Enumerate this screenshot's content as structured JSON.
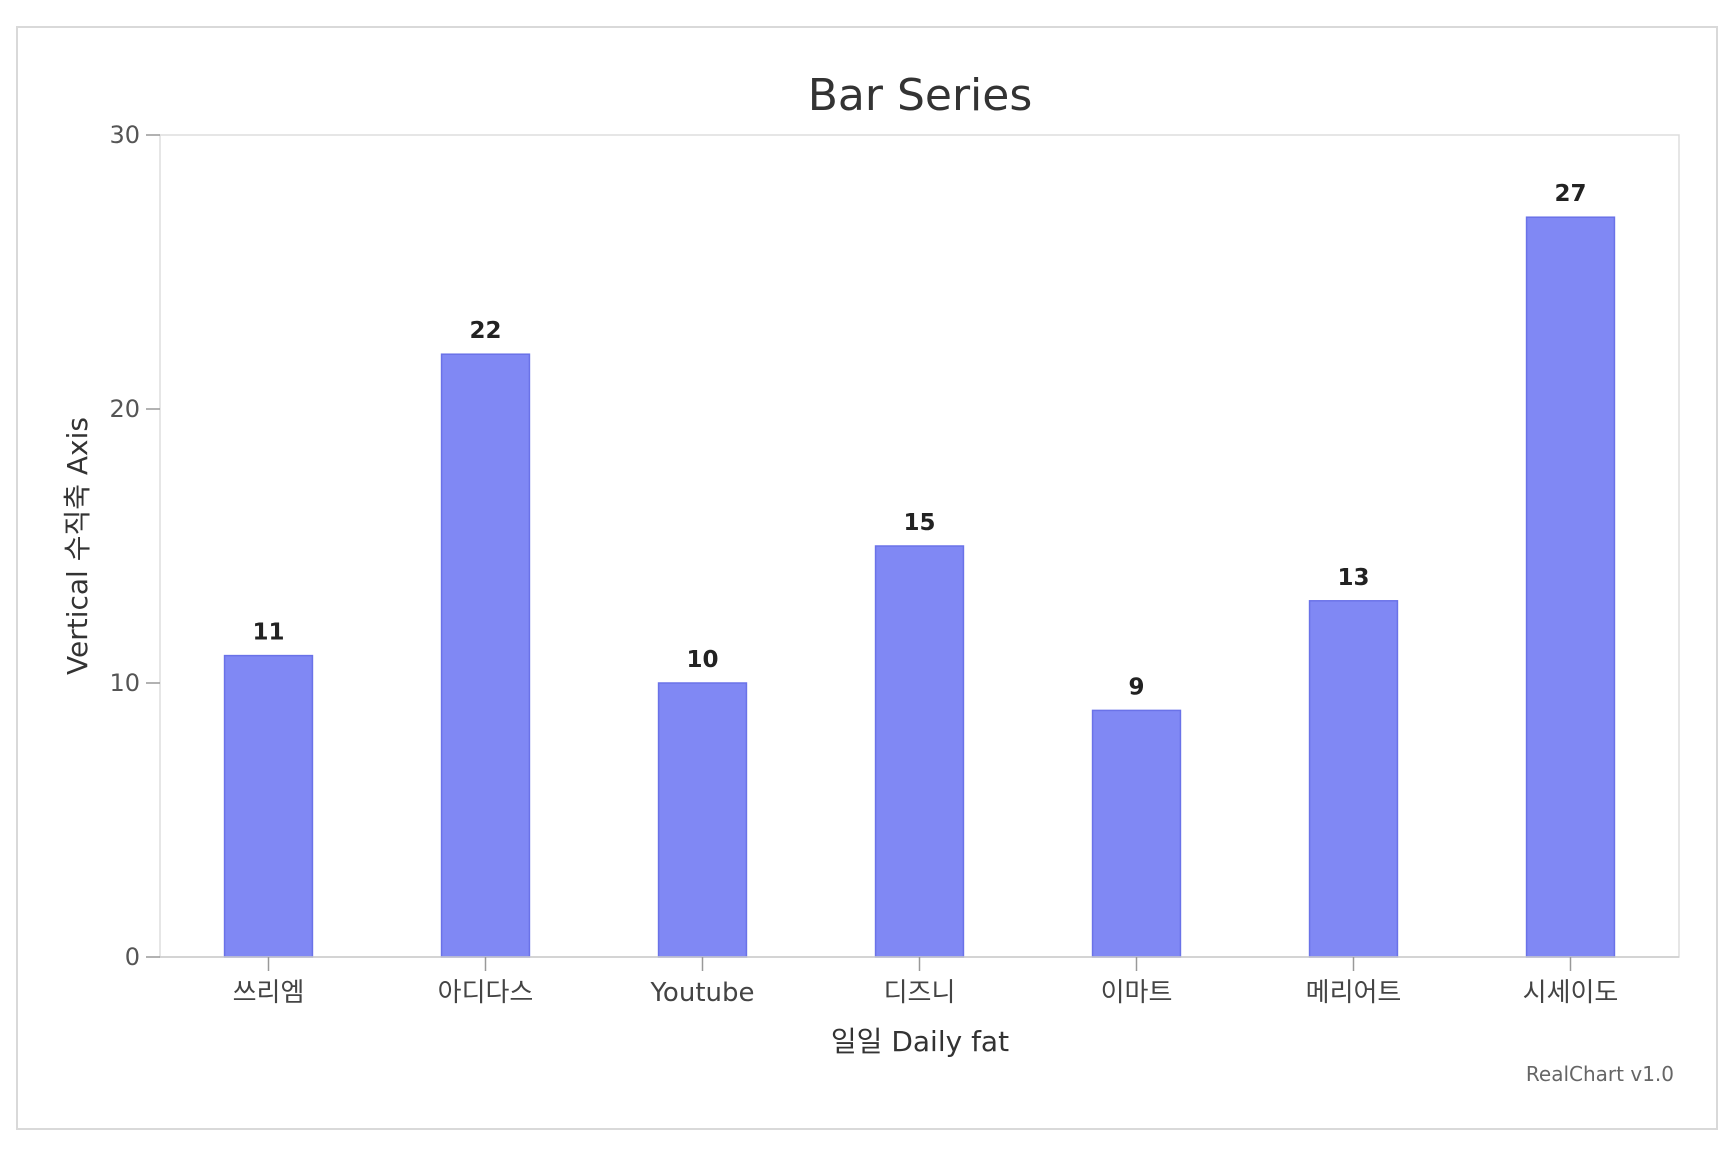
{
  "chart_data": {
    "type": "bar",
    "title": "Bar Series",
    "xlabel": "일일 Daily fat",
    "ylabel": "Vertical 수직축 Axis",
    "categories": [
      "쓰리엠",
      "아디다스",
      "Youtube",
      "디즈니",
      "이마트",
      "메리어트",
      "시세이도"
    ],
    "values": [
      11,
      22,
      10,
      15,
      9,
      13,
      27
    ],
    "ylim": [
      0,
      30
    ],
    "yticks": [
      0,
      10,
      20,
      30
    ],
    "data_labels": true,
    "grid": false,
    "legend": "none",
    "colors": {
      "bar_fill": "#8088f4",
      "bar_stroke": "#6a72e8",
      "axis": "#cccccc"
    }
  },
  "credit": "RealChart v1.0"
}
